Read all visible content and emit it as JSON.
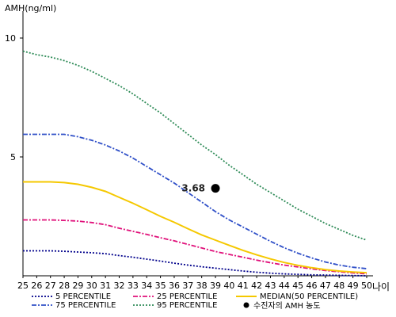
{
  "chart_data": {
    "type": "line",
    "ylabel": "AMH(ng/ml)",
    "xlabel": "나이",
    "x": [
      25,
      26,
      27,
      28,
      29,
      30,
      31,
      32,
      33,
      34,
      35,
      36,
      37,
      38,
      39,
      40,
      41,
      42,
      43,
      44,
      45,
      46,
      47,
      48,
      49,
      50
    ],
    "xlim": [
      25,
      50
    ],
    "ylim": [
      0,
      11
    ],
    "yticks": [
      5,
      10
    ],
    "grid": false,
    "legend_position": "bottom",
    "series": [
      {
        "name": "5 PERCENTILE",
        "color": "#00008b",
        "style": "dotted",
        "values": [
          1.05,
          1.05,
          1.05,
          1.03,
          1.0,
          0.97,
          0.93,
          0.85,
          0.78,
          0.7,
          0.62,
          0.53,
          0.45,
          0.38,
          0.32,
          0.26,
          0.2,
          0.15,
          0.11,
          0.08,
          0.06,
          0.04,
          0.03,
          0.02,
          0.01,
          0.0
        ]
      },
      {
        "name": "25 PERCENTILE",
        "color": "#e0107a",
        "style": "dashdot",
        "values": [
          2.35,
          2.35,
          2.35,
          2.33,
          2.3,
          2.24,
          2.15,
          2.0,
          1.87,
          1.74,
          1.6,
          1.47,
          1.32,
          1.17,
          1.02,
          0.9,
          0.78,
          0.66,
          0.55,
          0.45,
          0.37,
          0.29,
          0.22,
          0.17,
          0.12,
          0.08
        ]
      },
      {
        "name": "75 PERCENTILE",
        "color": "#3050c8",
        "style": "dashdot",
        "values": [
          5.95,
          5.95,
          5.95,
          5.95,
          5.85,
          5.7,
          5.5,
          5.25,
          4.95,
          4.6,
          4.25,
          3.9,
          3.5,
          3.1,
          2.7,
          2.35,
          2.05,
          1.75,
          1.45,
          1.18,
          0.95,
          0.75,
          0.58,
          0.45,
          0.36,
          0.3
        ]
      },
      {
        "name": "95 PERCENTILE",
        "color": "#2e8b57",
        "style": "dotted",
        "values": [
          9.45,
          9.3,
          9.2,
          9.05,
          8.85,
          8.6,
          8.3,
          8.0,
          7.65,
          7.25,
          6.85,
          6.4,
          5.95,
          5.5,
          5.1,
          4.65,
          4.25,
          3.85,
          3.5,
          3.15,
          2.8,
          2.5,
          2.2,
          1.95,
          1.7,
          1.5
        ]
      },
      {
        "name": "MEDIAN(50 PERCENTILE)",
        "color": "#f5c800",
        "style": "solid",
        "values": [
          3.95,
          3.95,
          3.95,
          3.92,
          3.85,
          3.72,
          3.55,
          3.3,
          3.05,
          2.78,
          2.5,
          2.25,
          1.98,
          1.72,
          1.5,
          1.28,
          1.07,
          0.88,
          0.71,
          0.56,
          0.44,
          0.34,
          0.26,
          0.2,
          0.16,
          0.13
        ]
      }
    ],
    "marker": {
      "label": "3.68",
      "x": 39,
      "y": 3.68,
      "legend": "수진자의 AMH 농도"
    }
  }
}
